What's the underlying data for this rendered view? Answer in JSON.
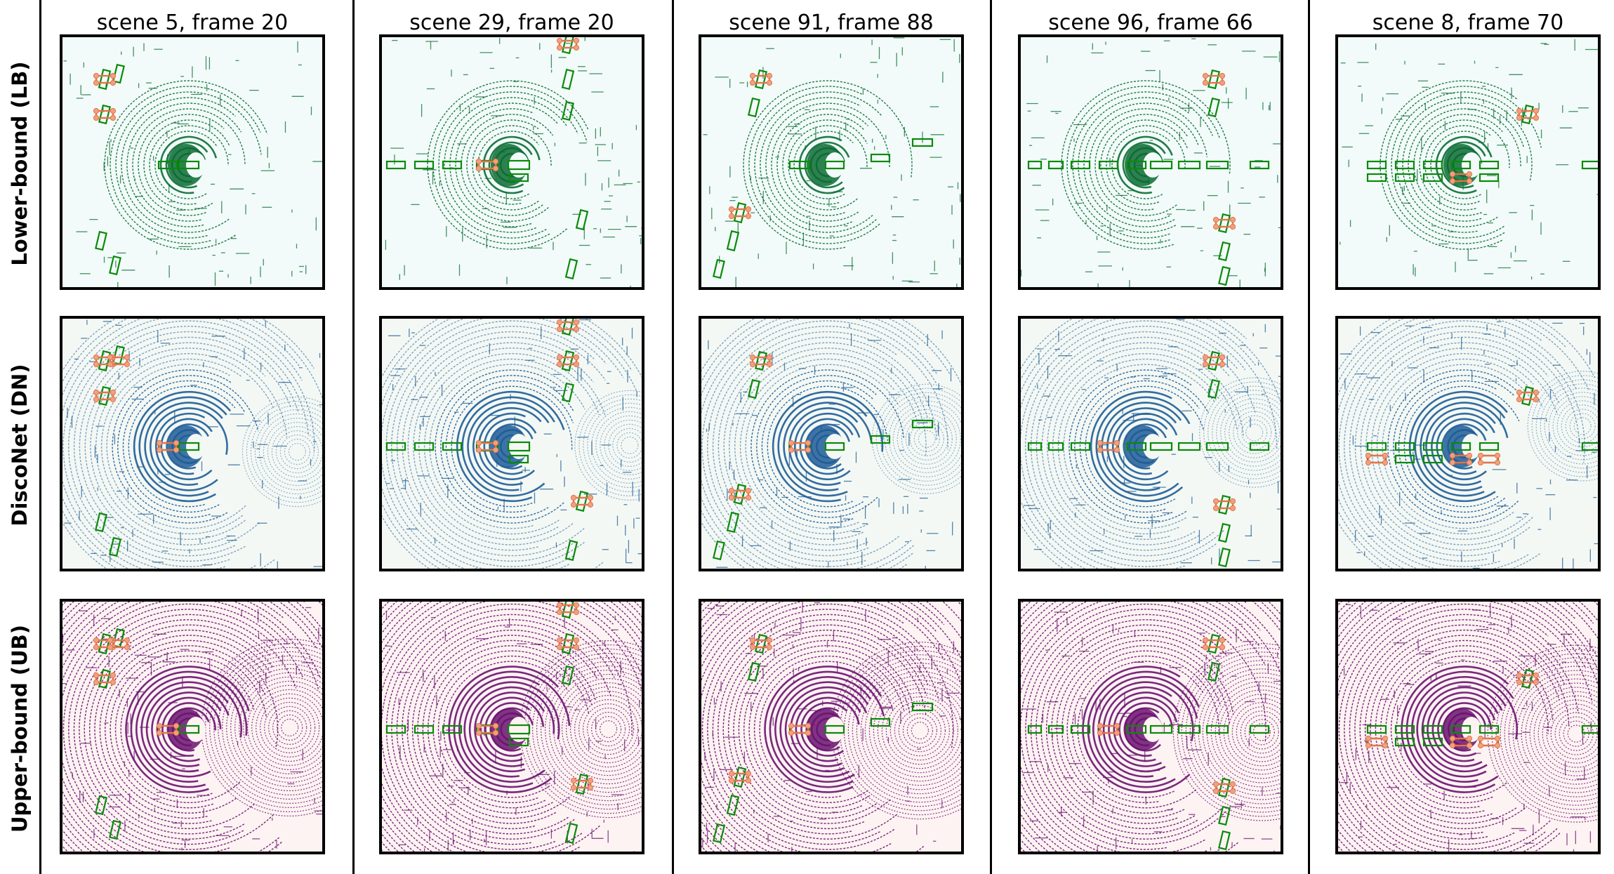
{
  "figure": {
    "columns": [
      {
        "title": "scene 5, frame 20"
      },
      {
        "title": "scene 29, frame 20"
      },
      {
        "title": "scene 91, frame 88"
      },
      {
        "title": "scene 96, frame 66"
      },
      {
        "title": "scene 8, frame 70"
      }
    ],
    "rows": [
      {
        "label": "Lower-bound (LB)",
        "point_color": "#0b6b33",
        "background": "#f2fbf9"
      },
      {
        "label": "DiscoNet (DN)",
        "point_color": "#1d5c96",
        "background": "#f4f8f4"
      },
      {
        "label": "Upper-bound (UB)",
        "point_color": "#6a1270",
        "background": "#fdf3f2"
      }
    ],
    "colors": {
      "ground_truth_box": "#0a8a0a",
      "prediction_box": "#e5734a",
      "prediction_fill": "#f0a080",
      "frame": "#000000"
    }
  }
}
